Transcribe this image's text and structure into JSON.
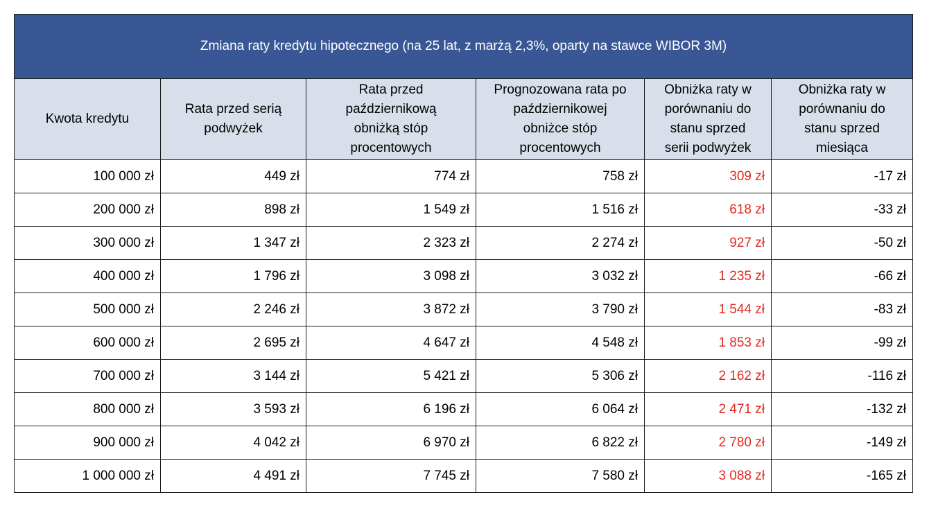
{
  "title": "Zmiana raty kredytu hipotecznego (na 25 lat, z marżą 2,3%, oparty na stawce WIBOR 3M)",
  "headers": [
    "Kwota kredytu",
    "Rata przed serią\npodwyżek",
    "Rata przed\npaździernikową\nobniżką stóp\nprocentowych",
    "Prognozowana rata po\npaździernikowej\nobniżce stóp\nprocentowych",
    "Obniżka raty w\nporównaniu do\nstanu sprzed\nserii podwyżek",
    "Obniżka raty w\nporównaniu do\nstanu sprzed\nmiesiąca"
  ],
  "rows": [
    [
      "100 000 zł",
      "449 zł",
      "774 zł",
      "758 zł",
      "309 zł",
      "-17 zł"
    ],
    [
      "200 000 zł",
      "898 zł",
      "1 549 zł",
      "1 516 zł",
      "618 zł",
      "-33 zł"
    ],
    [
      "300 000 zł",
      "1 347 zł",
      "2 323 zł",
      "2 274 zł",
      "927 zł",
      "-50 zł"
    ],
    [
      "400 000 zł",
      "1 796 zł",
      "3 098 zł",
      "3 032 zł",
      "1 235 zł",
      "-66 zł"
    ],
    [
      "500 000 zł",
      "2 246 zł",
      "3 872 zł",
      "3 790 zł",
      "1 544 zł",
      "-83 zł"
    ],
    [
      "600 000 zł",
      "2 695 zł",
      "4 647 zł",
      "4 548 zł",
      "1 853 zł",
      "-99 zł"
    ],
    [
      "700 000 zł",
      "3 144 zł",
      "5 421 zł",
      "5 306 zł",
      "2 162 zł",
      "-116 zł"
    ],
    [
      "800 000 zł",
      "3 593 zł",
      "6 196 zł",
      "6 064 zł",
      "2 471 zł",
      "-132 zł"
    ],
    [
      "900 000 zł",
      "4 042 zł",
      "6 970 zł",
      "6 822 zł",
      "2 780 zł",
      "-149 zł"
    ],
    [
      "1 000 000 zł",
      "4 491 zł",
      "7 745 zł",
      "7 580 zł",
      "3 088 zł",
      "-165 zł"
    ]
  ],
  "colors": {
    "title_bg": "#3a5795",
    "header_bg": "#d9dfea",
    "highlight_text": "#e32a1f"
  }
}
